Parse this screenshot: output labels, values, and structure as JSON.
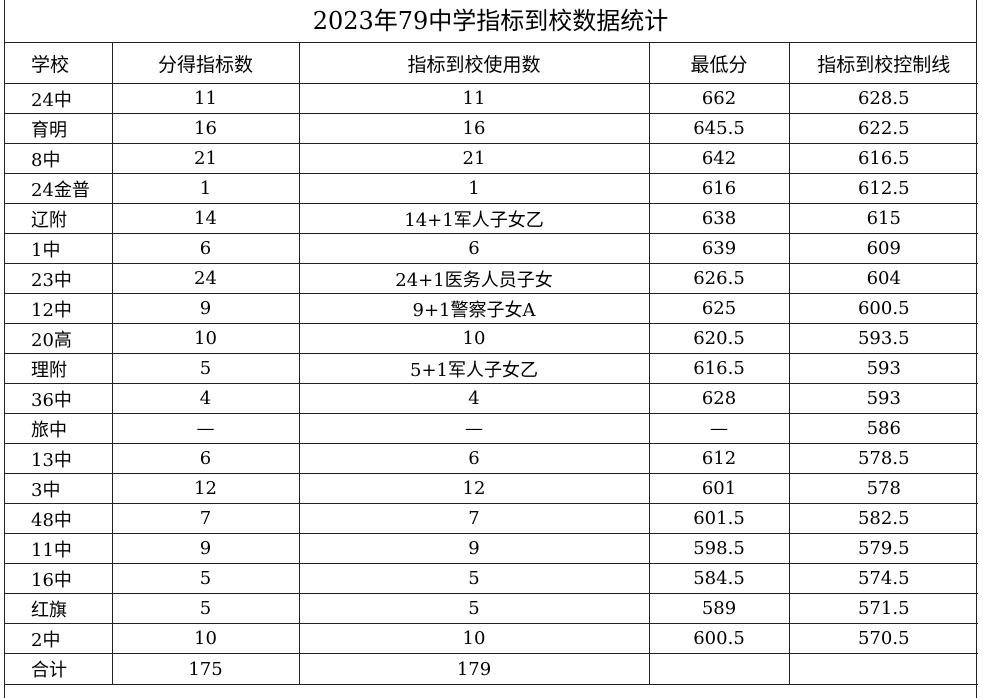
{
  "title": "2023年79中学指标到校数据统计",
  "columns": [
    "学校",
    "分得指标数",
    "指标到校使用数",
    "最低分",
    "指标到校控制线"
  ],
  "rows": [
    {
      "school": "24中",
      "quota": "11",
      "used": "11",
      "min_score": "662",
      "control_line": "628.5"
    },
    {
      "school": "育明",
      "quota": "16",
      "used": "16",
      "min_score": "645.5",
      "control_line": "622.5"
    },
    {
      "school": "8中",
      "quota": "21",
      "used": "21",
      "min_score": "642",
      "control_line": "616.5"
    },
    {
      "school": "24金普",
      "quota": "1",
      "used": "1",
      "min_score": "616",
      "control_line": "612.5"
    },
    {
      "school": "辽附",
      "quota": "14",
      "used": "14+1军人子女乙",
      "min_score": "638",
      "control_line": "615"
    },
    {
      "school": "1中",
      "quota": "6",
      "used": "6",
      "min_score": "639",
      "control_line": "609"
    },
    {
      "school": "23中",
      "quota": "24",
      "used": "24+1医务人员子女",
      "min_score": "626.5",
      "control_line": "604"
    },
    {
      "school": "12中",
      "quota": "9",
      "used": "9+1警察子女A",
      "min_score": "625",
      "control_line": "600.5"
    },
    {
      "school": "20高",
      "quota": "10",
      "used": "10",
      "min_score": "620.5",
      "control_line": "593.5"
    },
    {
      "school": "理附",
      "quota": "5",
      "used": "5+1军人子女乙",
      "min_score": "616.5",
      "control_line": "593"
    },
    {
      "school": "36中",
      "quota": "4",
      "used": "4",
      "min_score": "628",
      "control_line": "593"
    },
    {
      "school": "旅中",
      "quota": "—",
      "used": "—",
      "min_score": "—",
      "control_line": "586"
    },
    {
      "school": "13中",
      "quota": "6",
      "used": "6",
      "min_score": "612",
      "control_line": "578.5"
    },
    {
      "school": "3中",
      "quota": "12",
      "used": "12",
      "min_score": "601",
      "control_line": "578"
    },
    {
      "school": "48中",
      "quota": "7",
      "used": "7",
      "min_score": "601.5",
      "control_line": "582.5"
    },
    {
      "school": "11中",
      "quota": "9",
      "used": "9",
      "min_score": "598.5",
      "control_line": "579.5"
    },
    {
      "school": "16中",
      "quota": "5",
      "used": "5",
      "min_score": "584.5",
      "control_line": "574.5"
    },
    {
      "school": "红旗",
      "quota": "5",
      "used": "5",
      "min_score": "589",
      "control_line": "571.5"
    },
    {
      "school": "2中",
      "quota": "10",
      "used": "10",
      "min_score": "600.5",
      "control_line": "570.5"
    }
  ],
  "total": {
    "label": "合计",
    "quota": "175",
    "used": "179",
    "min_score": "",
    "control_line": ""
  }
}
